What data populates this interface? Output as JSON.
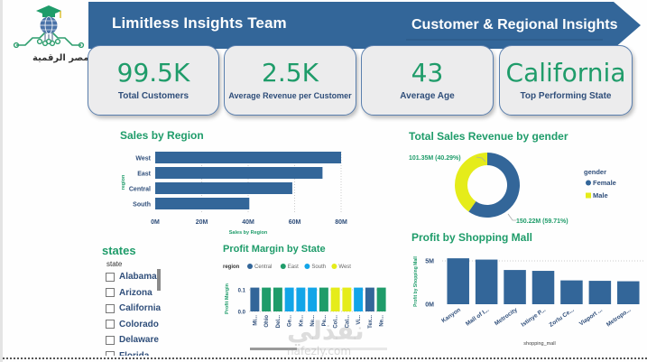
{
  "logo": {
    "text": "رواد مصر الرقمية",
    "icon": "graduation-globe-circuit-icon"
  },
  "banner": {
    "left_title": "Limitless Insights Team",
    "right_title": "Customer & Regional Insights",
    "color": "#336699"
  },
  "kpis": [
    {
      "value": "99.5K",
      "label": "Total Customers"
    },
    {
      "value": "2.5K",
      "label": "Average Revenue per Customer"
    },
    {
      "value": "43",
      "label": "Average Age"
    },
    {
      "value": "California",
      "label": "Top Performing State"
    }
  ],
  "colors": {
    "accent_green": "#1f9c6a",
    "navy_text": "#2f4e7a",
    "bar_blue": "#336699",
    "central": "#336699",
    "east": "#1f9c6a",
    "south": "#12a5e8",
    "west": "#e5ec1a",
    "female": "#336699",
    "male": "#e5ec1a"
  },
  "slicer": {
    "title": "states",
    "field": "state",
    "items": [
      "Alabama",
      "Arizona",
      "California",
      "Colorado",
      "Delaware",
      "Florida"
    ]
  },
  "watermark": {
    "text": "نفذلي",
    "url": "nafezly.com"
  },
  "chart_data": [
    {
      "id": "sales-by-region",
      "type": "bar",
      "orientation": "horizontal",
      "title": "Sales by Region",
      "xlabel": "Sales by Region",
      "ylabel": "region",
      "categories": [
        "West",
        "East",
        "Central",
        "South"
      ],
      "values": [
        80,
        72,
        59,
        40.5
      ],
      "unit": "M",
      "xlim": [
        0,
        80
      ],
      "ticks": [
        "0M",
        "20M",
        "40M",
        "60M",
        "80M"
      ],
      "tick_values": [
        0,
        20,
        40,
        60,
        80
      ],
      "grid": true
    },
    {
      "id": "sales-by-gender",
      "type": "pie",
      "donut": true,
      "title": "Total Sales Revenue by gender",
      "legend_title": "gender",
      "legend_position": "right",
      "categories": [
        "Female",
        "Male"
      ],
      "values": [
        150.22,
        101.35
      ],
      "labels": [
        "150.22M (59.71%)",
        "101.35M (40.29%)"
      ]
    },
    {
      "id": "profit-margin-by-state",
      "type": "bar",
      "title": "Profit Margin by State",
      "xlabel": "",
      "ylabel": "Profit Margin",
      "legend_title": "region",
      "legend_position": "top",
      "legend": [
        "Central",
        "East",
        "South",
        "West"
      ],
      "categories": [
        "Mi...",
        "Ohio",
        "Del...",
        "Ge...",
        "Ke...",
        "Ne...",
        "Pe...",
        "Col...",
        "Cal...",
        "Vi...",
        "Tex...",
        "Ne..."
      ],
      "regions": [
        "Central",
        "East",
        "East",
        "South",
        "South",
        "South",
        "East",
        "West",
        "West",
        "South",
        "Central",
        "East"
      ],
      "values": [
        0.11,
        0.11,
        0.11,
        0.11,
        0.11,
        0.11,
        0.11,
        0.11,
        0.11,
        0.11,
        0.11,
        0.11
      ],
      "ylim": [
        0,
        0.1
      ],
      "ticks": [
        "0.0",
        "0.1"
      ],
      "tick_values": [
        0,
        0.1
      ],
      "grid": true
    },
    {
      "id": "profit-by-mall",
      "type": "bar",
      "title": "Profit by Shopping Mall",
      "xlabel": "shopping_mall",
      "ylabel": "Profit by Shopping Mall",
      "categories": [
        "Kanyon",
        "Mall of I...",
        "Metrocity",
        "Istinye P...",
        "Zorlu Ce...",
        "Viaport ...",
        "Metropo..."
      ],
      "values": [
        5.3,
        5.15,
        3.95,
        3.85,
        2.75,
        2.7,
        2.65
      ],
      "unit": "M",
      "ylim": [
        0,
        5
      ],
      "ticks": [
        "0M",
        "5M"
      ],
      "tick_values": [
        0,
        5
      ],
      "grid": true
    }
  ]
}
